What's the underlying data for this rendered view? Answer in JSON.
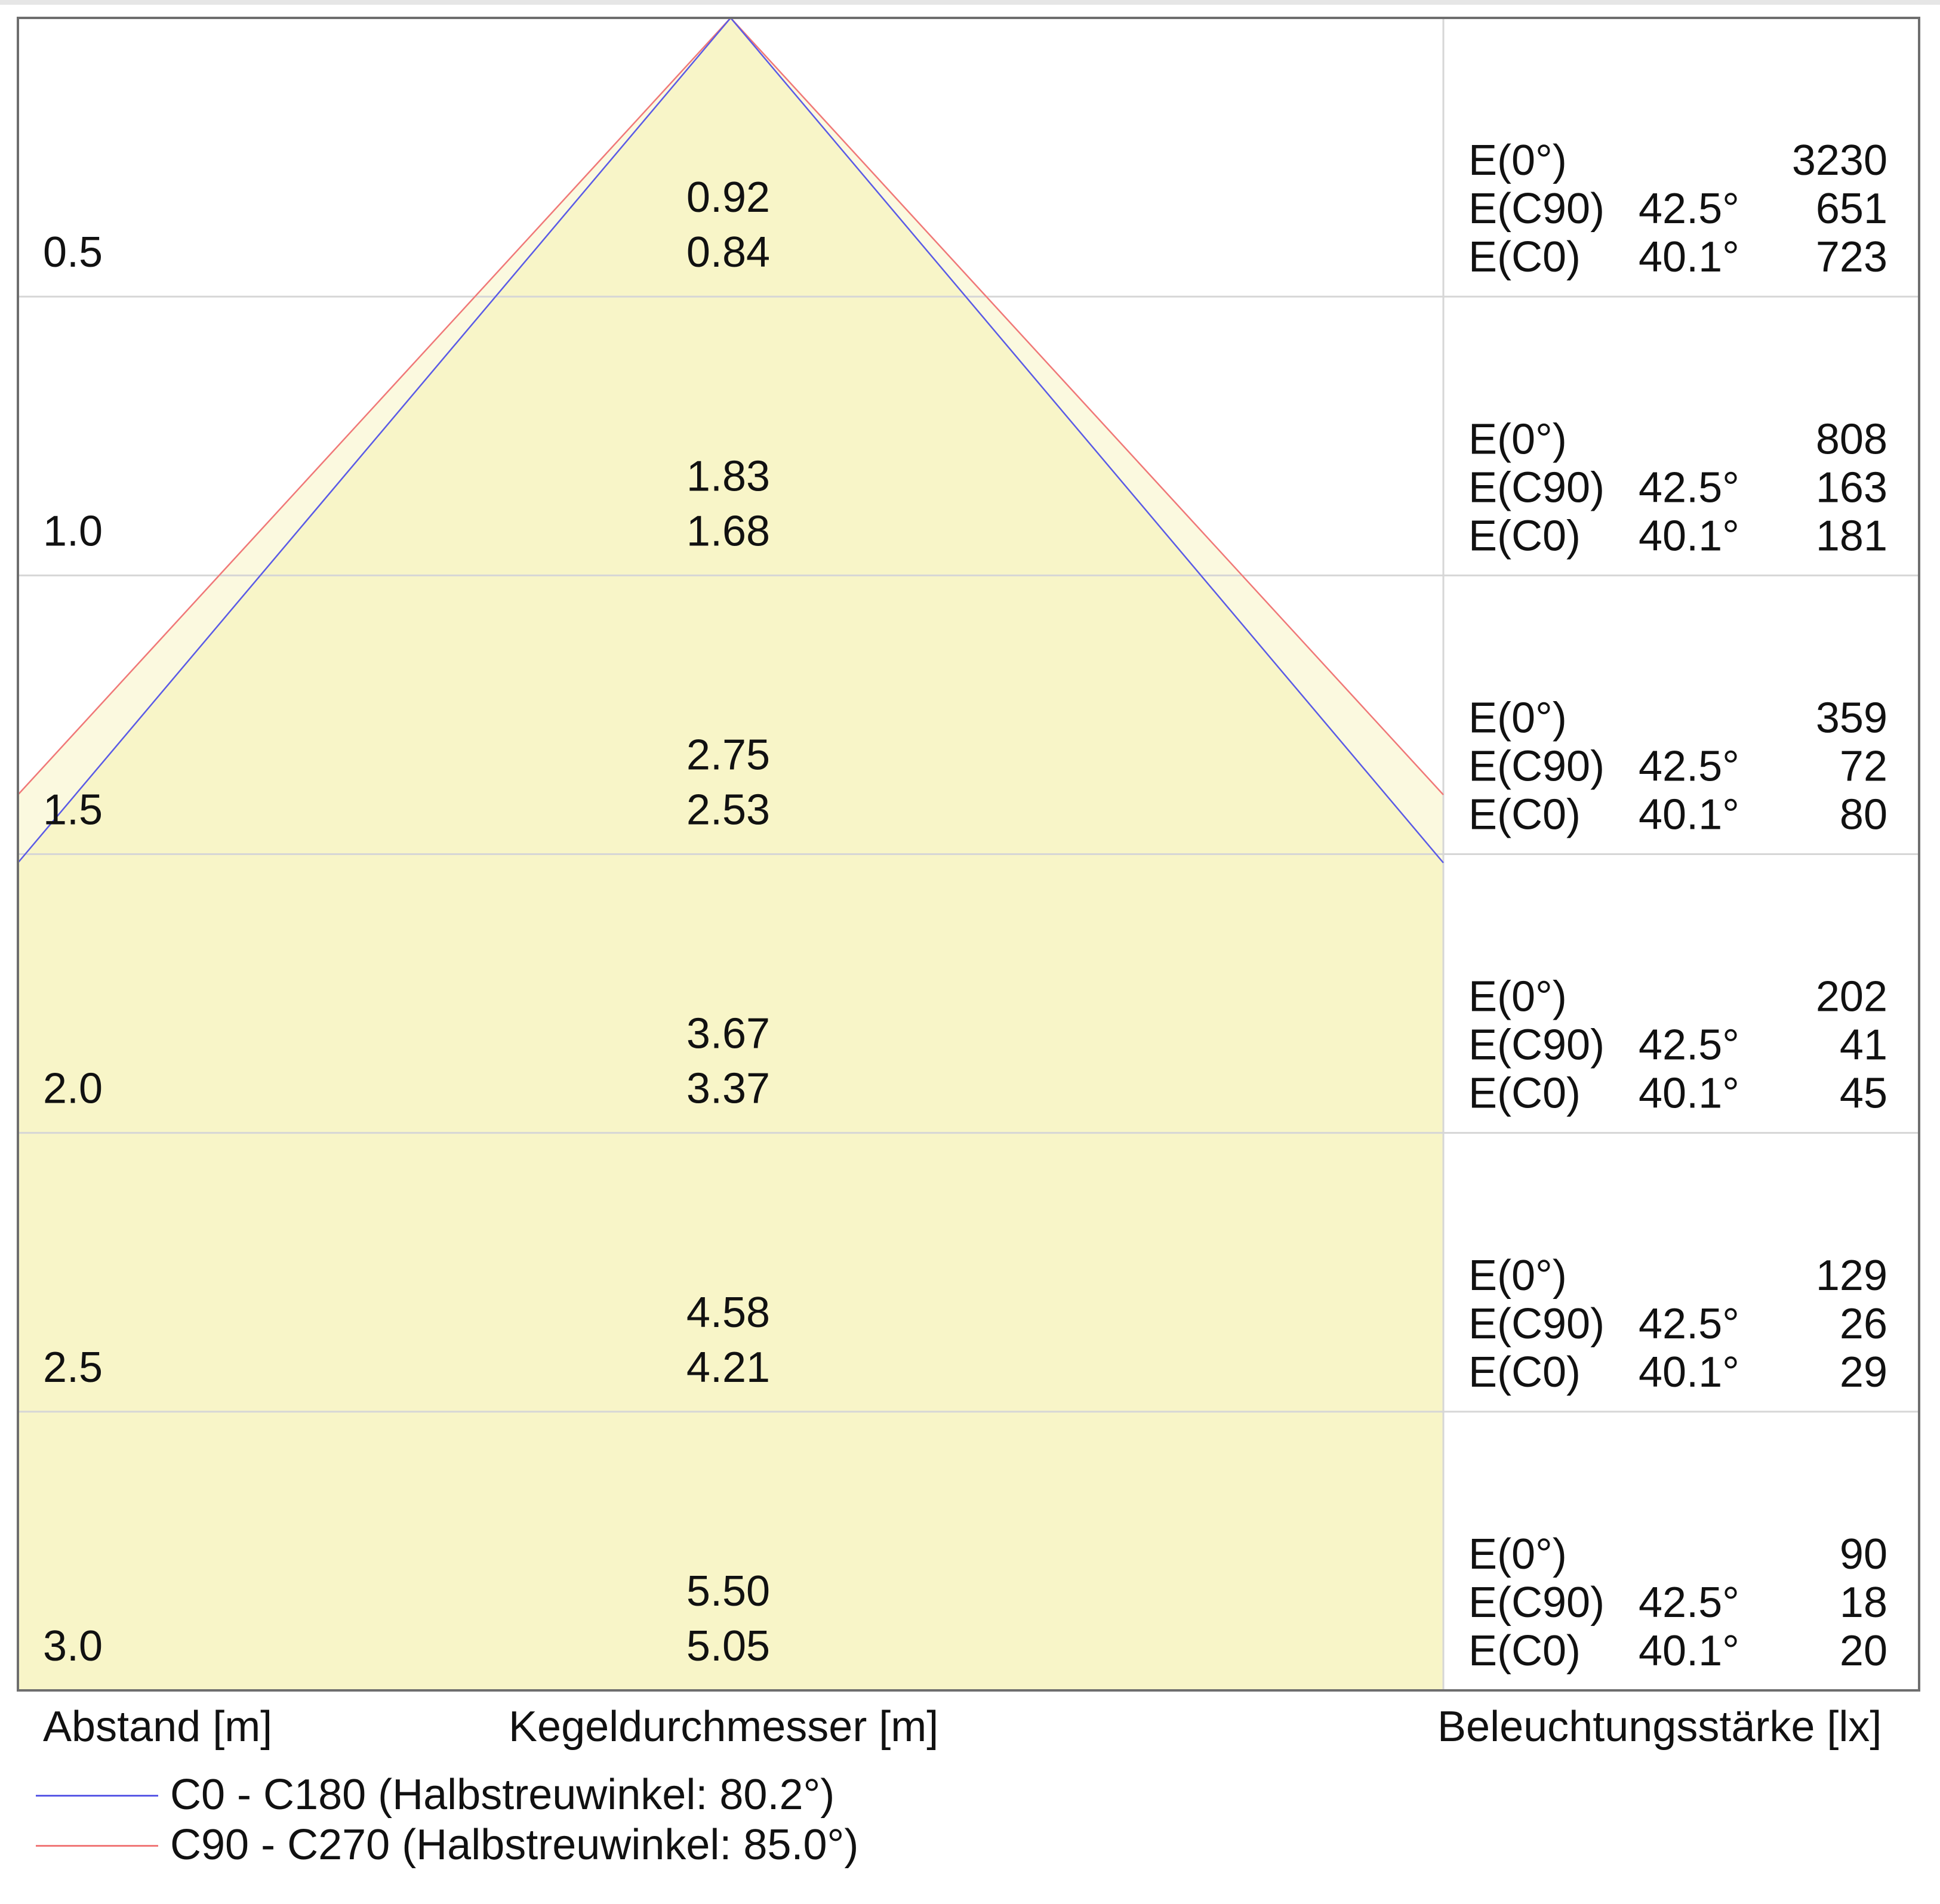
{
  "colors": {
    "c0_c180": "#5a5ae6",
    "c90_c270": "#f07878",
    "cone_fill": "#f8f5c8",
    "outer_fill": "#fbf9df",
    "grid": "#d6d6d6",
    "frame": "#6e6e6e"
  },
  "axes": {
    "distance_label": "Abstand [m]",
    "diameter_label": "Kegeldurchmesser [m]",
    "illuminance_label": "Beleuchtungsstärke [lx]"
  },
  "legend": [
    {
      "label": "C0 - C180 (Halbstreuwinkel: 80.2°)",
      "color_key": "c0_c180"
    },
    {
      "label": "C90 - C270 (Halbstreuwinkel: 85.0°)",
      "color_key": "c90_c270"
    }
  ],
  "rows": [
    {
      "distance": "0.5",
      "d_c90": "0.92",
      "d_c0": "0.84",
      "e0": "3230",
      "ec90": "651",
      "ec0": "723"
    },
    {
      "distance": "1.0",
      "d_c90": "1.83",
      "d_c0": "1.68",
      "e0": "808",
      "ec90": "163",
      "ec0": "181"
    },
    {
      "distance": "1.5",
      "d_c90": "2.75",
      "d_c0": "2.53",
      "e0": "359",
      "ec90": "72",
      "ec0": "80"
    },
    {
      "distance": "2.0",
      "d_c90": "3.67",
      "d_c0": "3.37",
      "e0": "202",
      "ec90": "41",
      "ec0": "45"
    },
    {
      "distance": "2.5",
      "d_c90": "4.58",
      "d_c0": "4.21",
      "e0": "129",
      "ec90": "26",
      "ec0": "29"
    },
    {
      "distance": "3.0",
      "d_c90": "5.50",
      "d_c0": "5.05",
      "e0": "90",
      "ec90": "18",
      "ec0": "20"
    }
  ],
  "labels": {
    "e0": "E(0°)",
    "ec90": "E(C90)",
    "ec0": "E(C0)",
    "angle_c90": "42.5°",
    "angle_c0": "40.1°"
  }
}
